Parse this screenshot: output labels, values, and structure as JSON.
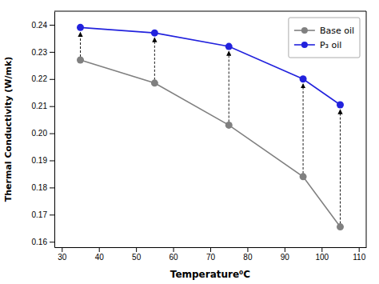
{
  "chart_data": {
    "type": "line",
    "x": [
      35,
      55,
      75,
      95,
      105
    ],
    "series": [
      {
        "name": "Base oil",
        "color": "#808080",
        "marker": "circle",
        "line_style": "solid",
        "values": [
          0.227,
          0.2185,
          0.203,
          0.184,
          0.1655
        ]
      },
      {
        "name": "P₃ oil",
        "color": "#2222dd",
        "marker": "circle",
        "line_style": "solid",
        "values": [
          0.239,
          0.237,
          0.232,
          0.22,
          0.2105
        ]
      }
    ],
    "x_label": "Temperature⁰C",
    "y_label": "Thermal Conductivity (W/mk)",
    "xlim": [
      28,
      112
    ],
    "ylim": [
      0.158,
      0.245
    ],
    "xticks": [
      30,
      40,
      50,
      60,
      70,
      80,
      90,
      100,
      110
    ],
    "yticks": [
      0.16,
      0.17,
      0.18,
      0.19,
      {
        "value": 0.2,
        "label": "0.20"
      },
      0.21,
      0.22,
      0.23,
      0.24
    ],
    "grid": false,
    "legend": "top-right"
  }
}
